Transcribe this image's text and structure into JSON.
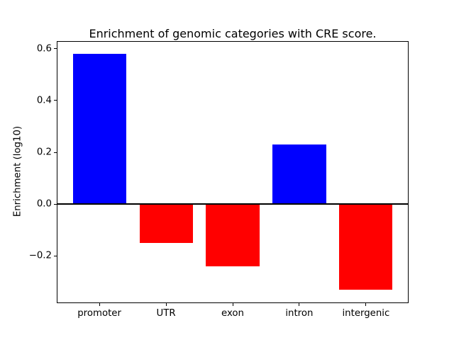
{
  "chart_data": {
    "type": "bar",
    "title": "Enrichment of genomic categories with CRE score.",
    "ylabel": "Enrichment (log10)",
    "xlabel": "",
    "categories": [
      "promoter",
      "UTR",
      "exon",
      "intron",
      "intergenic"
    ],
    "values": [
      0.58,
      -0.15,
      -0.24,
      0.23,
      -0.33
    ],
    "bar_colors": [
      "#0000ff",
      "#ff0000",
      "#ff0000",
      "#0000ff",
      "#ff0000"
    ],
    "positive_color": "#0000ff",
    "negative_color": "#ff0000",
    "yticks": [
      -0.2,
      0.0,
      0.2,
      0.4,
      0.6
    ],
    "ytick_labels": [
      "−0.2",
      "0.0",
      "0.2",
      "0.4",
      "0.6"
    ],
    "ylim": [
      -0.38,
      0.63
    ],
    "xlim": [
      -0.64,
      4.64
    ],
    "bar_width": 0.8,
    "grid": false,
    "zero_line": true,
    "legend": "none",
    "frame_color": "#000000",
    "background_color": "#ffffff"
  }
}
